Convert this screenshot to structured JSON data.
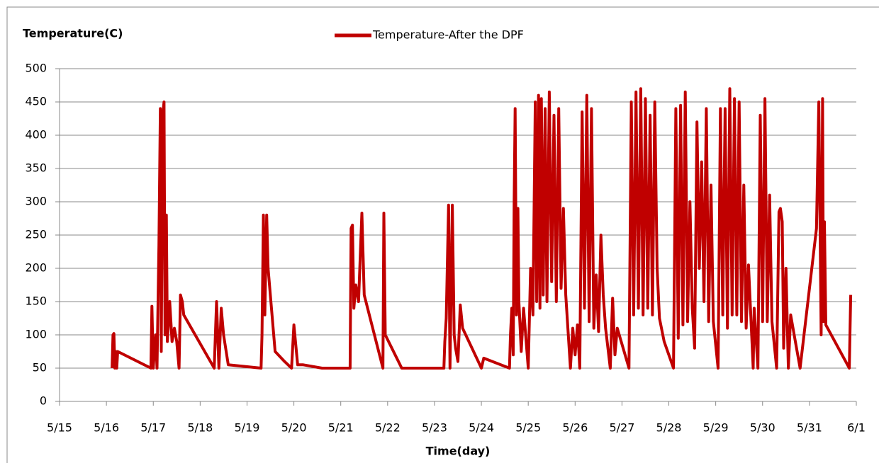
{
  "chart_data": {
    "type": "line",
    "ylabel": "Temperature(C)",
    "xlabel": "Time(day)",
    "x": [
      16.12,
      16.14,
      16.16,
      16.18,
      16.2,
      16.22,
      16.24,
      16.95,
      16.97,
      17.0,
      17.05,
      17.08,
      17.12,
      17.15,
      17.17,
      17.2,
      17.23,
      17.25,
      17.28,
      17.3,
      17.35,
      17.4,
      17.45,
      17.5,
      17.55,
      17.58,
      17.62,
      17.65,
      18.3,
      18.35,
      18.4,
      18.45,
      18.5,
      18.6,
      19.3,
      19.32,
      19.35,
      19.38,
      19.42,
      19.45,
      19.6,
      19.8,
      19.95,
      20.0,
      20.08,
      20.2,
      20.6,
      21.2,
      21.22,
      21.25,
      21.28,
      21.32,
      21.38,
      21.45,
      21.5,
      21.9,
      21.92,
      21.95,
      22.3,
      23.2,
      23.22,
      23.25,
      23.3,
      23.33,
      23.38,
      23.42,
      23.45,
      23.5,
      23.55,
      23.6,
      24.0,
      24.05,
      24.6,
      24.62,
      24.65,
      24.68,
      24.7,
      24.72,
      24.75,
      24.78,
      24.8,
      24.85,
      24.9,
      25.0,
      25.05,
      25.1,
      25.15,
      25.18,
      25.22,
      25.25,
      25.28,
      25.32,
      25.36,
      25.4,
      25.45,
      25.5,
      25.55,
      25.6,
      25.65,
      25.7,
      25.75,
      25.8,
      25.9,
      25.95,
      26.0,
      26.05,
      26.1,
      26.15,
      26.2,
      26.25,
      26.3,
      26.35,
      26.4,
      26.45,
      26.5,
      26.55,
      26.6,
      26.65,
      26.75,
      26.8,
      26.85,
      26.9,
      27.15,
      27.2,
      27.25,
      27.3,
      27.35,
      27.4,
      27.45,
      27.5,
      27.55,
      27.6,
      27.65,
      27.7,
      27.75,
      27.8,
      27.9,
      28.1,
      28.15,
      28.2,
      28.25,
      28.3,
      28.35,
      28.4,
      28.45,
      28.5,
      28.55,
      28.6,
      28.65,
      28.7,
      28.75,
      28.8,
      28.85,
      28.9,
      28.95,
      29.05,
      29.1,
      29.15,
      29.2,
      29.25,
      29.3,
      29.35,
      29.4,
      29.45,
      29.5,
      29.55,
      29.6,
      29.65,
      29.7,
      29.8,
      29.82,
      29.9,
      29.95,
      30.0,
      30.05,
      30.1,
      30.15,
      30.2,
      30.3,
      30.35,
      30.38,
      30.42,
      30.45,
      30.5,
      30.55,
      30.6,
      30.7,
      30.8,
      31.15,
      31.2,
      31.25,
      31.28,
      31.3,
      31.32,
      31.35,
      31.85,
      31.88
    ],
    "series": [
      {
        "name": "Temperature-After the DPF",
        "color": "#c00000",
        "values": [
          50,
          100,
          102,
          50,
          75,
          50,
          75,
          50,
          143,
          50,
          100,
          50,
          235,
          440,
          75,
          430,
          450,
          100,
          280,
          90,
          150,
          90,
          110,
          90,
          50,
          160,
          150,
          130,
          50,
          150,
          50,
          140,
          100,
          55,
          50,
          100,
          280,
          130,
          280,
          200,
          75,
          60,
          50,
          115,
          55,
          55,
          50,
          50,
          260,
          265,
          140,
          175,
          150,
          283,
          160,
          50,
          283,
          100,
          50,
          50,
          90,
          125,
          295,
          50,
          295,
          100,
          80,
          60,
          145,
          110,
          50,
          65,
          50,
          100,
          140,
          70,
          300,
          440,
          130,
          290,
          150,
          75,
          140,
          50,
          200,
          130,
          450,
          150,
          460,
          140,
          455,
          160,
          440,
          150,
          465,
          180,
          430,
          150,
          440,
          170,
          290,
          160,
          50,
          110,
          70,
          115,
          50,
          435,
          140,
          460,
          120,
          440,
          110,
          190,
          105,
          250,
          160,
          110,
          50,
          155,
          70,
          110,
          50,
          450,
          130,
          465,
          140,
          470,
          130,
          455,
          140,
          430,
          130,
          450,
          200,
          125,
          90,
          50,
          440,
          95,
          445,
          115,
          465,
          120,
          300,
          140,
          80,
          420,
          200,
          360,
          150,
          440,
          120,
          325,
          120,
          50,
          440,
          130,
          440,
          110,
          470,
          130,
          455,
          130,
          450,
          120,
          325,
          110,
          205,
          50,
          140,
          50,
          430,
          120,
          455,
          120,
          310,
          120,
          50,
          285,
          290,
          270,
          80,
          200,
          50,
          130,
          90,
          50,
          260,
          450,
          100,
          455,
          120,
          270,
          115,
          50,
          160
        ]
      }
    ],
    "xlim": [
      15,
      32
    ],
    "xticks": [
      {
        "value": 15,
        "label": "5/15"
      },
      {
        "value": 16,
        "label": "5/16"
      },
      {
        "value": 17,
        "label": "5/17"
      },
      {
        "value": 18,
        "label": "5/18"
      },
      {
        "value": 19,
        "label": "5/19"
      },
      {
        "value": 20,
        "label": "5/20"
      },
      {
        "value": 21,
        "label": "5/21"
      },
      {
        "value": 22,
        "label": "5/22"
      },
      {
        "value": 23,
        "label": "5/23"
      },
      {
        "value": 24,
        "label": "5/24"
      },
      {
        "value": 25,
        "label": "5/25"
      },
      {
        "value": 26,
        "label": "5/26"
      },
      {
        "value": 27,
        "label": "5/27"
      },
      {
        "value": 28,
        "label": "5/28"
      },
      {
        "value": 29,
        "label": "5/29"
      },
      {
        "value": 30,
        "label": "5/30"
      },
      {
        "value": 31,
        "label": "5/31"
      },
      {
        "value": 32,
        "label": "6/1"
      }
    ],
    "ylim": [
      0,
      500
    ],
    "yticks": [
      0,
      50,
      100,
      150,
      200,
      250,
      300,
      350,
      400,
      450,
      500
    ],
    "grid": true,
    "legend": "top"
  }
}
